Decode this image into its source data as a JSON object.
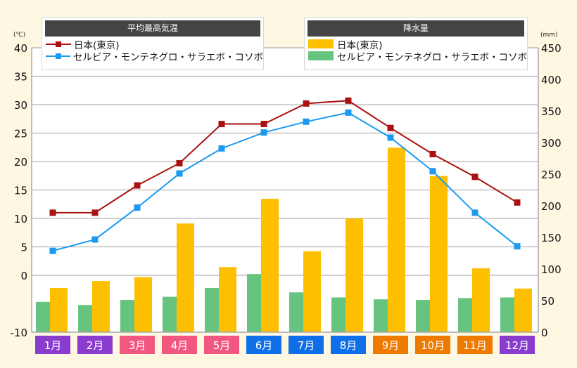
{
  "chart_data": {
    "type": "bar+line",
    "title": "",
    "categories": [
      "1月",
      "2月",
      "3月",
      "4月",
      "5月",
      "6月",
      "7月",
      "8月",
      "9月",
      "10月",
      "11月",
      "12月"
    ],
    "category_colors": [
      "#8a3ccf",
      "#8a3ccf",
      "#f25780",
      "#f25780",
      "#f25780",
      "#0f6fe8",
      "#0f6fe8",
      "#0f6fe8",
      "#ee7a00",
      "#ee7a00",
      "#ee7a00",
      "#8a3ccf"
    ],
    "left_axis": {
      "label": "(℃)",
      "ylim": [
        -10,
        40
      ],
      "ticks": [
        -10,
        0,
        5,
        10,
        15,
        20,
        25,
        30,
        35,
        40
      ]
    },
    "right_axis": {
      "label": "(mm)",
      "ylim": [
        0,
        450
      ],
      "ticks": [
        0,
        50,
        100,
        150,
        200,
        250,
        300,
        350,
        400,
        450
      ]
    },
    "grid": true,
    "line_legend": {
      "title": "平均最高気温",
      "placement": "top-left"
    },
    "bar_legend": {
      "title": "降水量",
      "placement": "top-right"
    },
    "line_series": [
      {
        "name": "日本(東京)",
        "axis": "left",
        "color": "#aa1111",
        "values": [
          11.0,
          11.0,
          15.8,
          19.7,
          26.6,
          26.6,
          30.2,
          30.7,
          25.9,
          21.3,
          17.3,
          12.8
        ]
      },
      {
        "name": "セルビア・モンテネグロ・サラエボ・コソボ",
        "axis": "left",
        "color": "#1a9af0",
        "values": [
          4.3,
          6.3,
          11.9,
          17.9,
          22.3,
          25.1,
          27.0,
          28.6,
          24.2,
          18.3,
          11.0,
          5.1
        ]
      }
    ],
    "bar_series": [
      {
        "name": "日本(東京)",
        "axis": "right",
        "color": "#fdbf00",
        "values": [
          70,
          81,
          87,
          172,
          103,
          211,
          128,
          180,
          292,
          247,
          101,
          69
        ]
      },
      {
        "name": "セルビア・モンテネグロ・サラエボ・コソボ",
        "axis": "right",
        "color": "#67c47f",
        "values": [
          48,
          43,
          51,
          56,
          70,
          92,
          63,
          55,
          52,
          51,
          54,
          55
        ]
      }
    ]
  }
}
